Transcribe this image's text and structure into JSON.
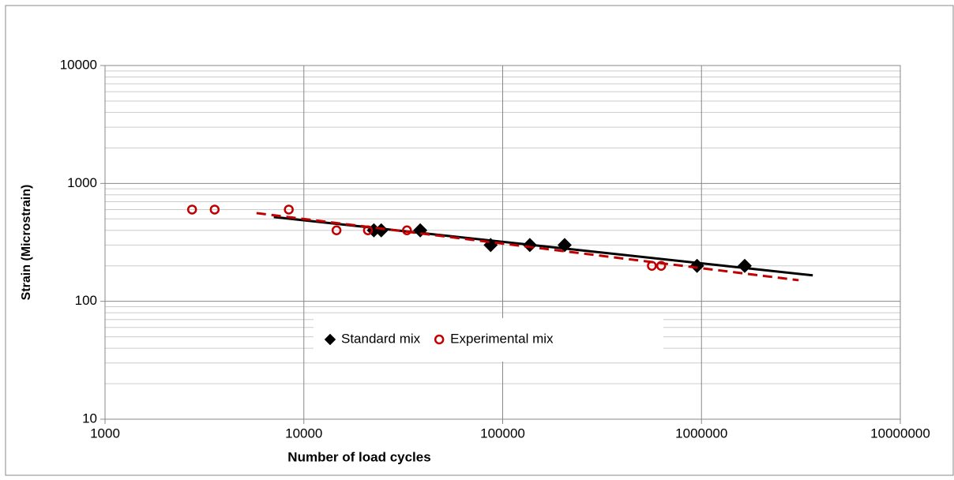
{
  "chart_data": {
    "type": "scatter",
    "x_label": "Number of load cycles",
    "y_label": "Strain (Microstrain)",
    "xscale": "log",
    "yscale": "log",
    "xlim": [
      1000,
      10000000
    ],
    "ylim": [
      10,
      10000
    ],
    "xticks": [
      1000,
      10000,
      100000,
      1000000,
      10000000
    ],
    "yticks": [
      10,
      100,
      1000,
      10000
    ],
    "grid_x": true,
    "grid_y": true,
    "minor_grid_y": true,
    "legend": "lower center",
    "series": [
      {
        "name": "Standard mix",
        "color": "#000000",
        "marker": "diamond",
        "x": [
          22500,
          24500,
          38500,
          87000,
          137000,
          205000,
          950000,
          1650000
        ],
        "values": [
          400,
          400,
          400,
          300,
          300,
          300,
          200,
          200
        ],
        "trend": {
          "x": [
            7060,
            3630000
          ],
          "values": [
            519,
            166
          ],
          "dash": false
        }
      },
      {
        "name": "Experimental mix",
        "color": "#c00000",
        "marker": "circle",
        "x": [
          2740,
          3560,
          8400,
          14600,
          21000,
          33000,
          563000,
          627000
        ],
        "values": [
          600,
          600,
          600,
          400,
          400,
          400,
          200,
          200
        ],
        "trend": {
          "x": [
            5780,
            3080000
          ],
          "values": [
            560,
            151
          ],
          "dash": true
        }
      }
    ]
  }
}
